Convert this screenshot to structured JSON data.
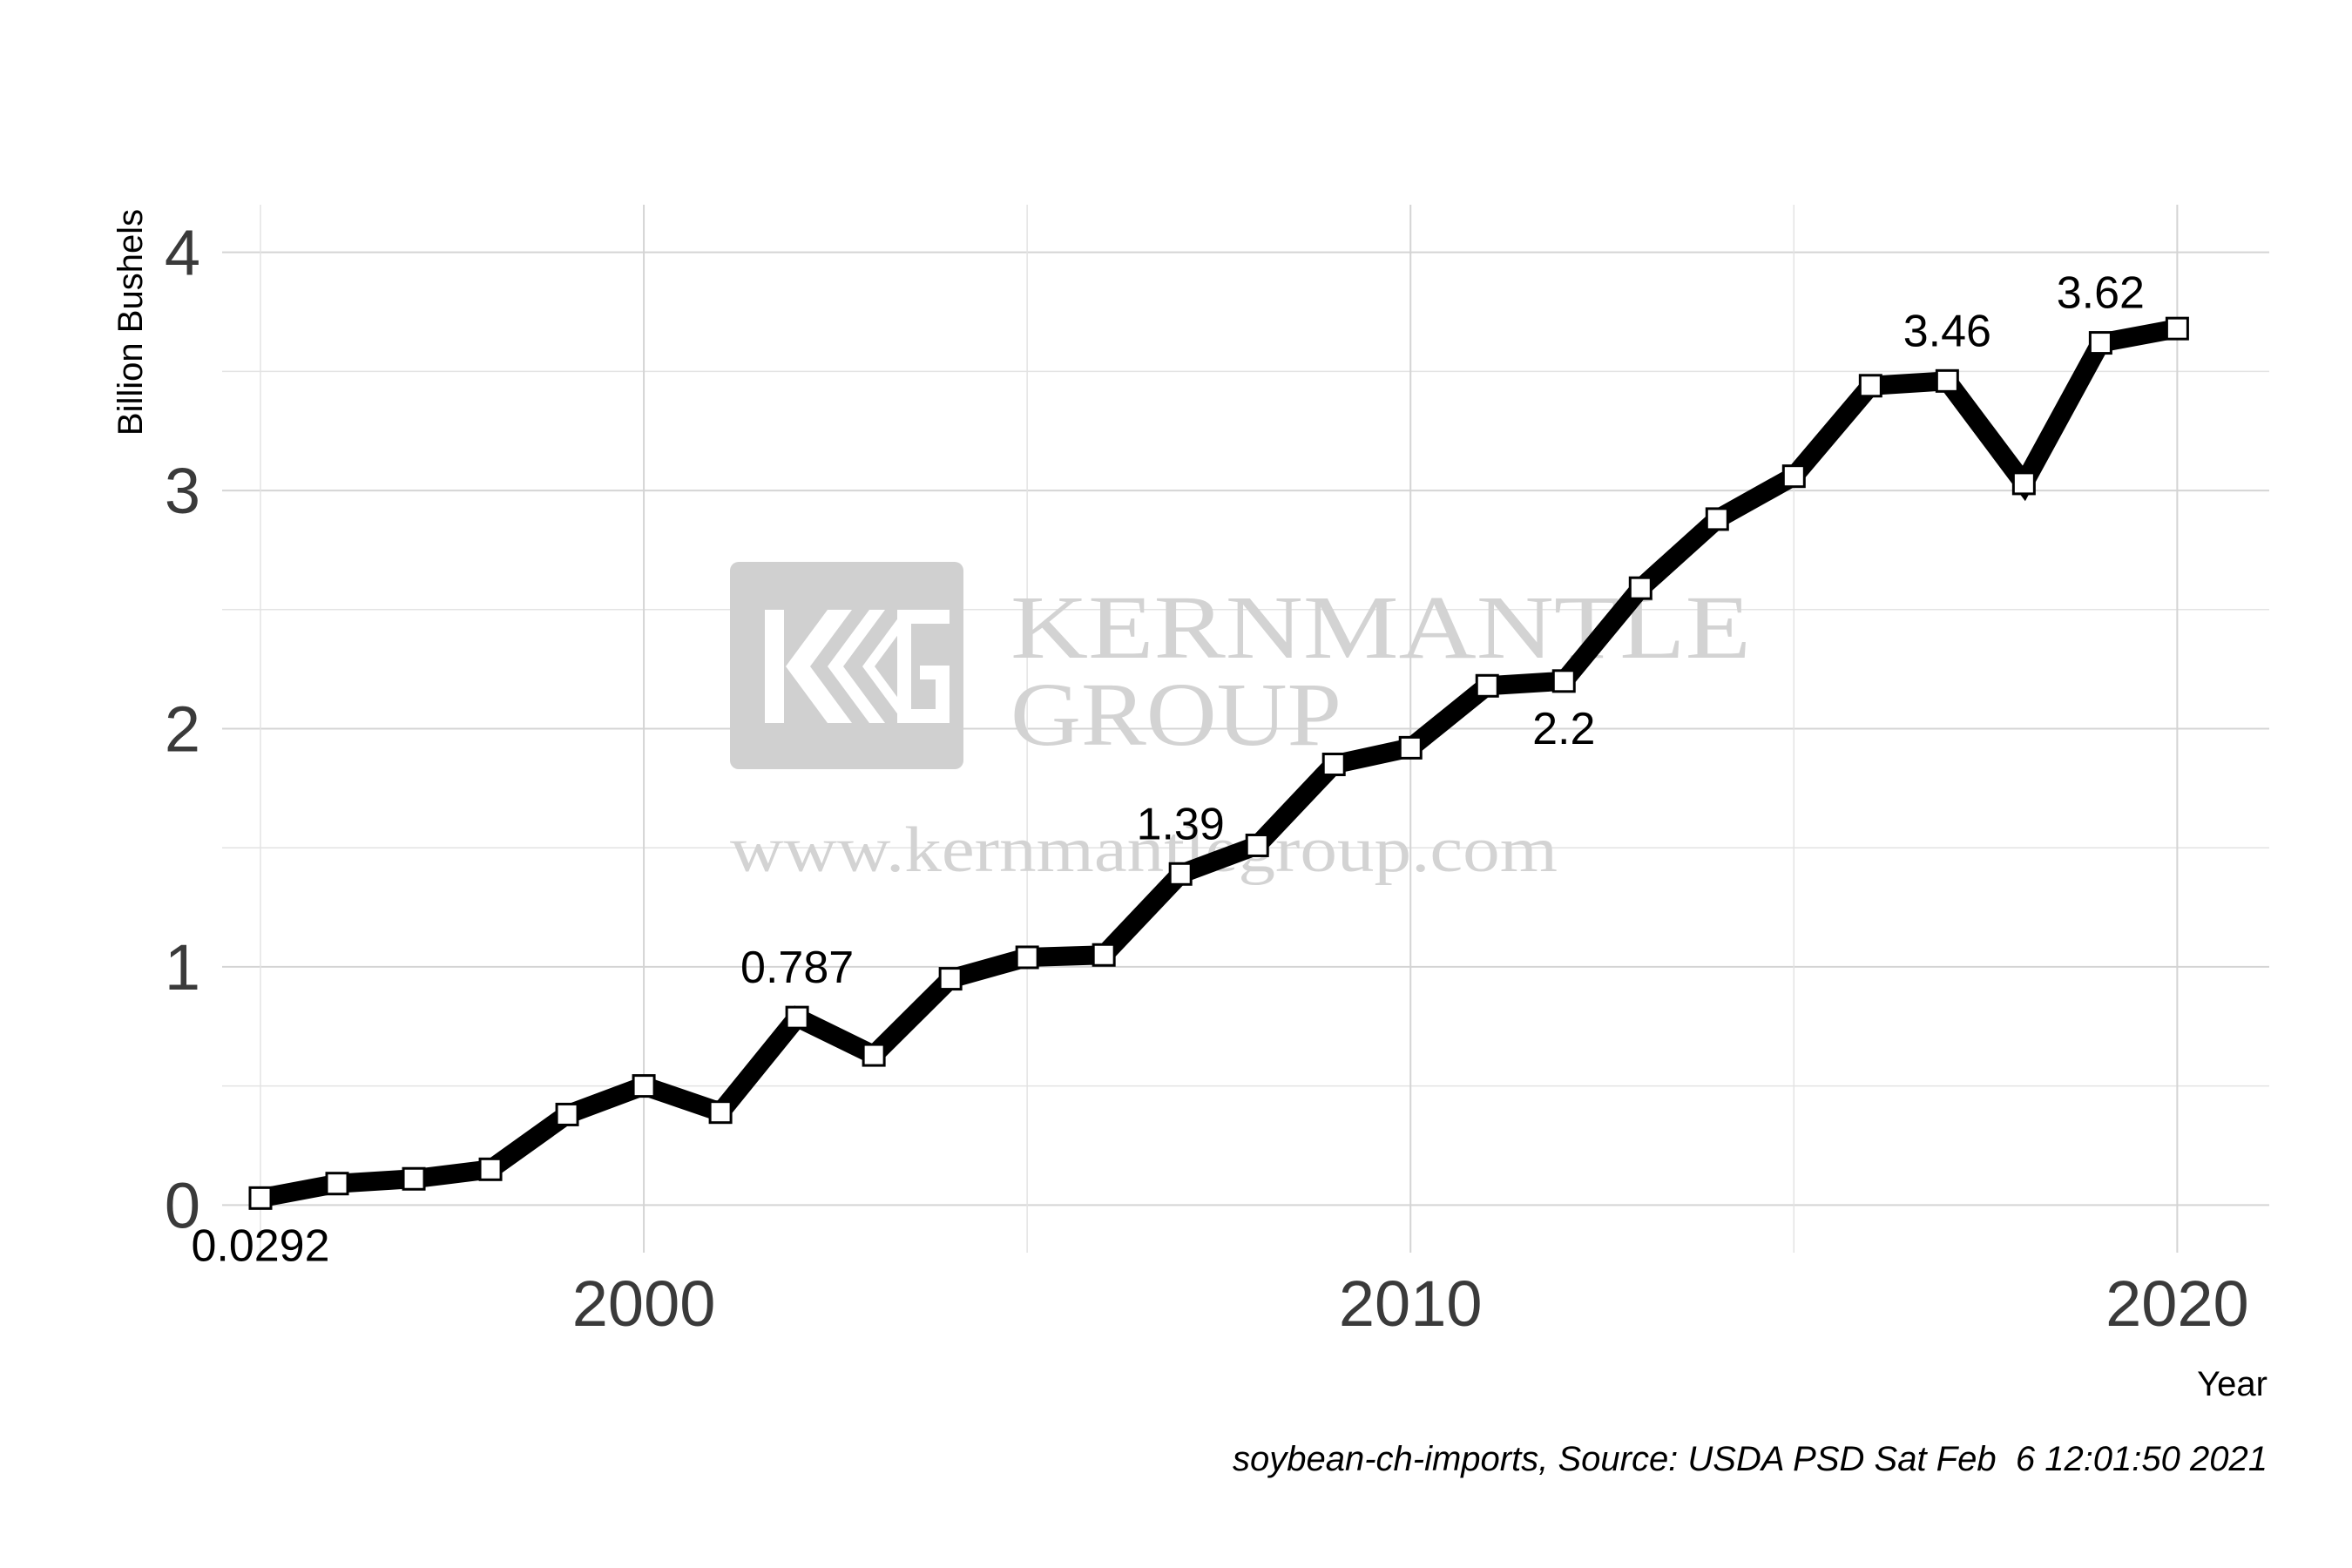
{
  "chart_data": {
    "type": "line",
    "ylabel": "Billion Bushels",
    "xlabel": "Year",
    "caption": "soybean-ch-imports, Source: USDA PSD Sat Feb  6 12:01:50 2021",
    "xlim": [
      1994.5,
      2021.2
    ],
    "ylim": [
      -0.2,
      4.2
    ],
    "x_ticks": [
      2000,
      2010,
      2020
    ],
    "y_ticks": [
      0,
      1,
      2,
      3,
      4
    ],
    "grid": true,
    "line_color": "#000000",
    "marker": "square",
    "x": [
      1995,
      1996,
      1997,
      1998,
      1999,
      2000,
      2001,
      2002,
      2003,
      2004,
      2005,
      2006,
      2007,
      2008,
      2009,
      2010,
      2011,
      2012,
      2013,
      2014,
      2015,
      2016,
      2017,
      2018,
      2019,
      2020
    ],
    "y": [
      0.0292,
      0.09,
      0.11,
      0.15,
      0.38,
      0.5,
      0.39,
      0.787,
      0.63,
      0.95,
      1.04,
      1.05,
      1.39,
      1.51,
      1.85,
      1.92,
      2.18,
      2.2,
      2.59,
      2.88,
      3.06,
      3.44,
      3.46,
      3.03,
      3.62,
      3.68
    ],
    "point_labels": [
      {
        "x": 1995,
        "y": 0.0292,
        "text": "0.0292",
        "pos": "below"
      },
      {
        "x": 2002,
        "y": 0.787,
        "text": "0.787",
        "pos": "above"
      },
      {
        "x": 2007,
        "y": 1.39,
        "text": "1.39",
        "pos": "above"
      },
      {
        "x": 2012,
        "y": 2.2,
        "text": "2.2",
        "pos": "below"
      },
      {
        "x": 2017,
        "y": 3.46,
        "text": "3.46",
        "pos": "above"
      },
      {
        "x": 2019,
        "y": 3.62,
        "text": "3.62",
        "pos": "above"
      }
    ]
  },
  "watermark": {
    "line1": "KERNMANTLE",
    "line2": "GROUP",
    "url": "www.kernmantlegroup.com"
  }
}
